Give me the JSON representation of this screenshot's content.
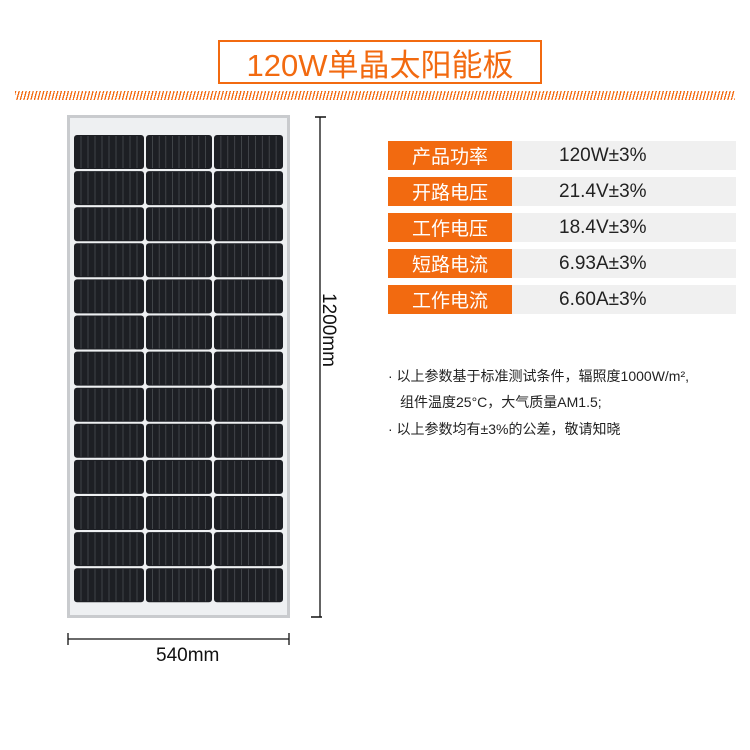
{
  "title": "120W单晶太阳能板",
  "colors": {
    "accent": "#f26a10",
    "value_bg": "#f0f0f0",
    "cell": "#1d1f24",
    "frame": "#d6d8db"
  },
  "dimensions": {
    "width": "540mm",
    "height": "1200mm"
  },
  "specs": [
    {
      "label": "产品功率",
      "value": "120W±3%"
    },
    {
      "label": "开路电压",
      "value": "21.4V±3%"
    },
    {
      "label": "工作电压",
      "value": "18.4V±3%"
    },
    {
      "label": "短路电流",
      "value": "6.93A±3%"
    },
    {
      "label": "工作电流",
      "value": "6.60A±3%"
    }
  ],
  "notes": {
    "line1": "· 以上参数基于标准测试条件，辐照度1000W/m²,",
    "line2": "组件温度25°C，大气质量AM1.5;",
    "line3": "· 以上参数均有±3%的公差，敬请知晓"
  }
}
